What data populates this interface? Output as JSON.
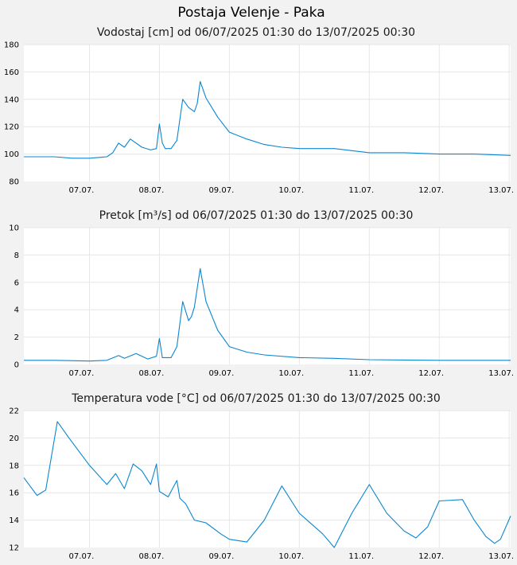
{
  "page": {
    "title": "Postaja Velenje - Paka"
  },
  "colors": {
    "series": "#0a86d0",
    "background": "#f2f2f2",
    "plot": "#ffffff",
    "grid": "#e6e6e6"
  },
  "chart_data": [
    {
      "type": "line",
      "title": "Vodostaj [cm] od 06/07/2025 01:30 do 13/07/2025 00:30",
      "xlabel": "",
      "ylabel": "",
      "x_range": [
        "06.07.2025 01:30",
        "13.07.2025 00:30"
      ],
      "x_ticks": [
        "07.07.",
        "08.07.",
        "09.07.",
        "10.07.",
        "11.07.",
        "12.07.",
        "13.07."
      ],
      "ylim": [
        80,
        180
      ],
      "y_ticks": [
        80,
        100,
        120,
        140,
        160,
        180
      ],
      "grid": true,
      "legend": "none",
      "series": [
        {
          "x": [
            "06.07. 01:30",
            "06.07. 06:00",
            "06.07. 12:00",
            "06.07. 18:00",
            "07.07. 00:00",
            "07.07. 06:00",
            "07.07. 08:00",
            "07.07. 10:00",
            "07.07. 12:00",
            "07.07. 14:00",
            "07.07. 18:00",
            "07.07. 21:00",
            "07.07. 23:00",
            "08.07. 00:00",
            "08.07. 01:00",
            "08.07. 02:00",
            "08.07. 04:00",
            "08.07. 06:00",
            "08.07. 08:00",
            "08.07. 10:00",
            "08.07. 12:00",
            "08.07. 13:00",
            "08.07. 14:00",
            "08.07. 16:00",
            "08.07. 20:00",
            "09.07. 00:00",
            "09.07. 06:00",
            "09.07. 12:00",
            "09.07. 18:00",
            "10.07. 00:00",
            "10.07. 12:00",
            "11.07. 00:00",
            "11.07. 12:00",
            "12.07. 00:00",
            "12.07. 12:00",
            "13.07. 00:30"
          ],
          "y": [
            98,
            98,
            98,
            97,
            97,
            98,
            101,
            108,
            105,
            111,
            105,
            103,
            104,
            122,
            108,
            104,
            104,
            110,
            140,
            134,
            131,
            137,
            153,
            141,
            127,
            116,
            111,
            107,
            105,
            104,
            104,
            101,
            101,
            100,
            100,
            99
          ]
        }
      ]
    },
    {
      "type": "line",
      "title": "Pretok [m³/s] od 06/07/2025 01:30 do 13/07/2025 00:30",
      "xlabel": "",
      "ylabel": "",
      "x_range": [
        "06.07.2025 01:30",
        "13.07.2025 00:30"
      ],
      "x_ticks": [
        "07.07.",
        "08.07.",
        "09.07.",
        "10.07.",
        "11.07.",
        "12.07.",
        "13.07."
      ],
      "ylim": [
        0,
        10
      ],
      "y_ticks": [
        0,
        2,
        4,
        6,
        8,
        10
      ],
      "grid": true,
      "legend": "none",
      "series": [
        {
          "x": [
            "06.07. 01:30",
            "06.07. 12:00",
            "07.07. 00:00",
            "07.07. 06:00",
            "07.07. 10:00",
            "07.07. 12:00",
            "07.07. 16:00",
            "07.07. 20:00",
            "07.07. 23:00",
            "08.07. 00:00",
            "08.07. 01:00",
            "08.07. 04:00",
            "08.07. 06:00",
            "08.07. 08:00",
            "08.07. 10:00",
            "08.07. 11:00",
            "08.07. 12:00",
            "08.07. 14:00",
            "08.07. 16:00",
            "08.07. 20:00",
            "09.07. 00:00",
            "09.07. 06:00",
            "09.07. 12:00",
            "10.07. 00:00",
            "10.07. 12:00",
            "11.07. 00:00",
            "12.07. 00:00",
            "13.07. 00:30"
          ],
          "y": [
            0.3,
            0.3,
            0.25,
            0.3,
            0.65,
            0.45,
            0.8,
            0.4,
            0.6,
            1.9,
            0.5,
            0.5,
            1.3,
            4.6,
            3.2,
            3.5,
            4.2,
            7.0,
            4.6,
            2.5,
            1.3,
            0.9,
            0.7,
            0.5,
            0.45,
            0.35,
            0.3,
            0.3
          ]
        }
      ]
    },
    {
      "type": "line",
      "title": "Temperatura vode [°C] od 06/07/2025 01:30 do 13/07/2025 00:30",
      "xlabel": "",
      "ylabel": "",
      "x_range": [
        "06.07.2025 01:30",
        "13.07.2025 00:30"
      ],
      "x_ticks": [
        "07.07.",
        "08.07.",
        "09.07.",
        "10.07.",
        "11.07.",
        "12.07.",
        "13.07."
      ],
      "ylim": [
        12,
        22
      ],
      "y_ticks": [
        12,
        14,
        16,
        18,
        20,
        22
      ],
      "grid": true,
      "legend": "none",
      "series": [
        {
          "x": [
            "06.07. 01:30",
            "06.07. 06:00",
            "06.07. 09:00",
            "06.07. 13:00",
            "06.07. 17:00",
            "07.07. 00:00",
            "07.07. 06:00",
            "07.07. 09:00",
            "07.07. 12:00",
            "07.07. 15:00",
            "07.07. 18:00",
            "07.07. 21:00",
            "07.07. 23:00",
            "08.07. 00:00",
            "08.07. 03:00",
            "08.07. 06:00",
            "08.07. 07:00",
            "08.07. 09:00",
            "08.07. 12:00",
            "08.07. 16:00",
            "08.07. 21:00",
            "09.07. 00:00",
            "09.07. 06:00",
            "09.07. 12:00",
            "09.07. 18:00",
            "10.07. 00:00",
            "10.07. 08:00",
            "10.07. 12:00",
            "10.07. 18:00",
            "11.07. 00:00",
            "11.07. 06:00",
            "11.07. 12:00",
            "11.07. 16:00",
            "11.07. 20:00",
            "12.07. 00:00",
            "12.07. 08:00",
            "12.07. 12:00",
            "12.07. 16:00",
            "12.07. 19:00",
            "12.07. 21:00",
            "13.07. 00:30"
          ],
          "y": [
            17.1,
            15.8,
            16.2,
            21.2,
            20.0,
            18.0,
            16.6,
            17.4,
            16.3,
            18.1,
            17.6,
            16.6,
            18.1,
            16.1,
            15.7,
            16.9,
            15.6,
            15.2,
            14.0,
            13.8,
            13.0,
            12.6,
            12.4,
            14.0,
            16.5,
            14.5,
            13.0,
            12.0,
            14.5,
            16.6,
            14.5,
            13.2,
            12.7,
            13.5,
            15.4,
            15.5,
            14.0,
            12.8,
            12.3,
            12.6,
            14.3
          ]
        }
      ]
    }
  ]
}
